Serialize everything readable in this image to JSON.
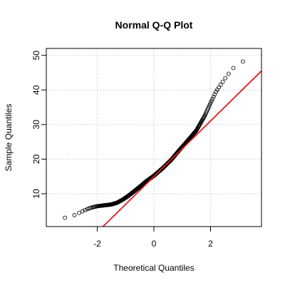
{
  "chart_data": {
    "type": "scatter",
    "title": "Normal Q-Q Plot",
    "xlabel": "Theoretical Quantiles",
    "ylabel": "Sample Quantiles",
    "xlim": [
      -3.8,
      3.8
    ],
    "ylim": [
      0.5,
      52
    ],
    "x_ticks": [
      -2,
      0,
      2
    ],
    "x_tick_labels": [
      "-2",
      "0",
      "2"
    ],
    "y_ticks": [
      10,
      20,
      30,
      40,
      50
    ],
    "y_tick_labels": [
      "10",
      "20",
      "30",
      "40",
      "50"
    ],
    "grid": true,
    "grid_style": "dotted",
    "point_style": "open-circle",
    "point_color": "#000000",
    "line_color": "#e31a1c",
    "reference_line": {
      "x0": -1.8,
      "y0": 0.5,
      "x1": 3.8,
      "y1": 45.5
    },
    "quantile_curve": [
      [
        -3.7,
        2.2
      ],
      [
        -3.2,
        3.0
      ],
      [
        -3.0,
        3.2
      ],
      [
        -2.8,
        3.8
      ],
      [
        -2.6,
        4.6
      ],
      [
        -2.4,
        5.4
      ],
      [
        -2.2,
        6.0
      ],
      [
        -2.0,
        6.4
      ],
      [
        -1.8,
        6.6
      ],
      [
        -1.5,
        6.9
      ],
      [
        -1.3,
        7.4
      ],
      [
        -1.1,
        8.3
      ],
      [
        -0.9,
        9.4
      ],
      [
        -0.7,
        10.7
      ],
      [
        -0.5,
        12.0
      ],
      [
        -0.3,
        13.4
      ],
      [
        0.0,
        15.2
      ],
      [
        0.3,
        17.3
      ],
      [
        0.6,
        19.7
      ],
      [
        0.9,
        22.6
      ],
      [
        1.2,
        25.4
      ],
      [
        1.5,
        28.3
      ],
      [
        1.8,
        32.6
      ],
      [
        2.0,
        36.2
      ],
      [
        2.2,
        39.6
      ],
      [
        2.4,
        42.0
      ],
      [
        2.6,
        44.3
      ],
      [
        2.8,
        46.3
      ],
      [
        3.0,
        47.5
      ],
      [
        3.2,
        48.5
      ],
      [
        3.4,
        49.3
      ],
      [
        3.6,
        50.0
      ]
    ],
    "n_points": 600
  }
}
